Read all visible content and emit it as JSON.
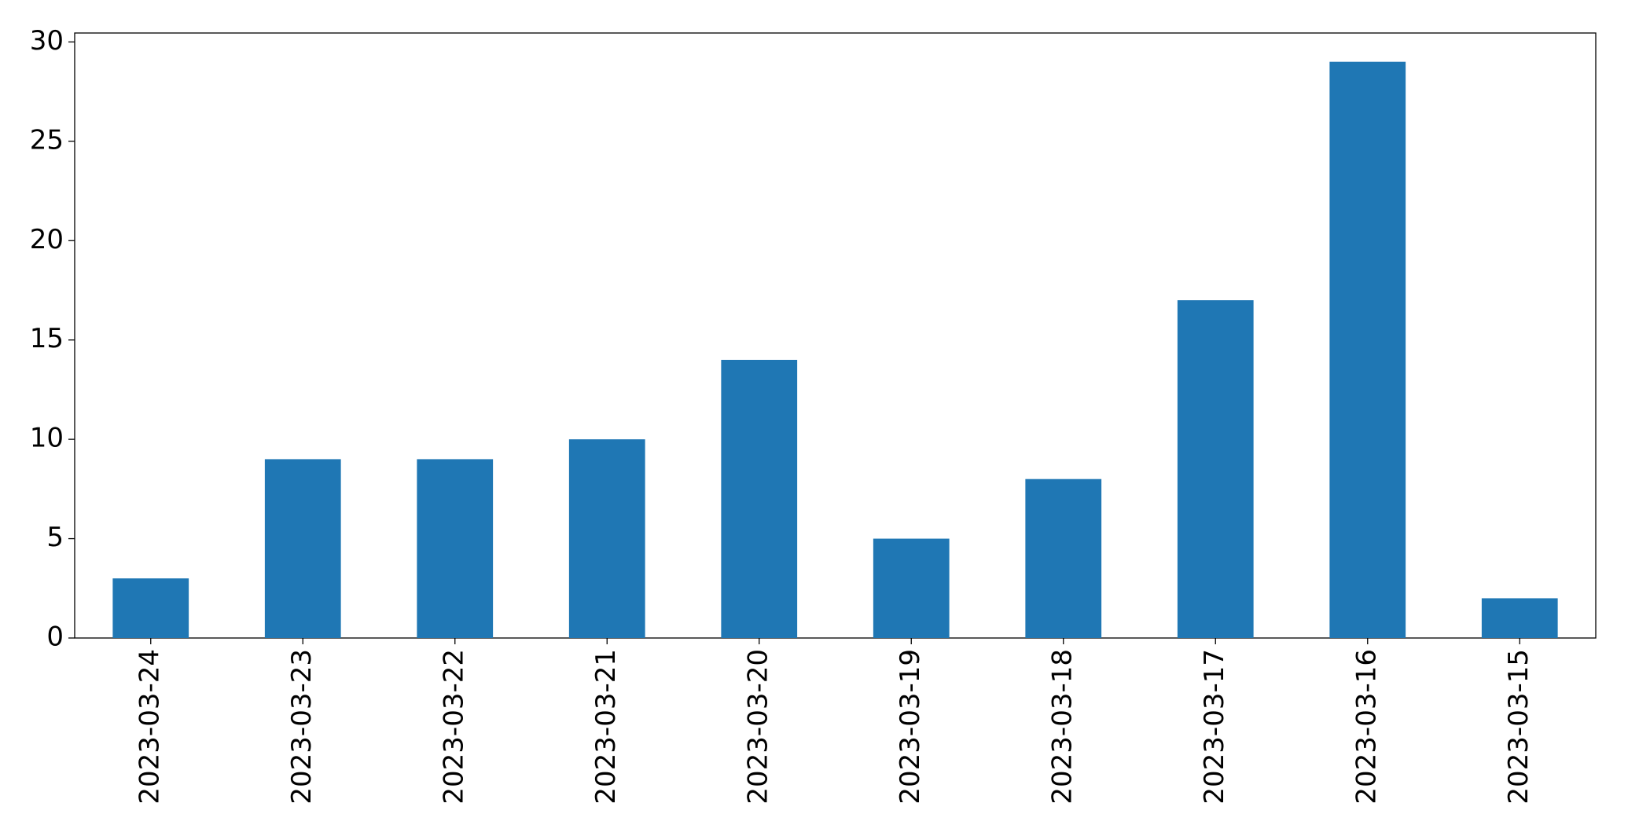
{
  "chart_data": {
    "type": "bar",
    "categories": [
      "2023-03-24",
      "2023-03-23",
      "2023-03-22",
      "2023-03-21",
      "2023-03-20",
      "2023-03-19",
      "2023-03-18",
      "2023-03-17",
      "2023-03-16",
      "2023-03-15"
    ],
    "values": [
      3,
      9,
      9,
      10,
      14,
      5,
      8,
      17,
      29,
      2
    ],
    "color": "#1f77b4",
    "ylim": [
      0,
      30.45
    ],
    "yticks": [
      0,
      5,
      10,
      15,
      20,
      25,
      30
    ],
    "grid": false
  }
}
